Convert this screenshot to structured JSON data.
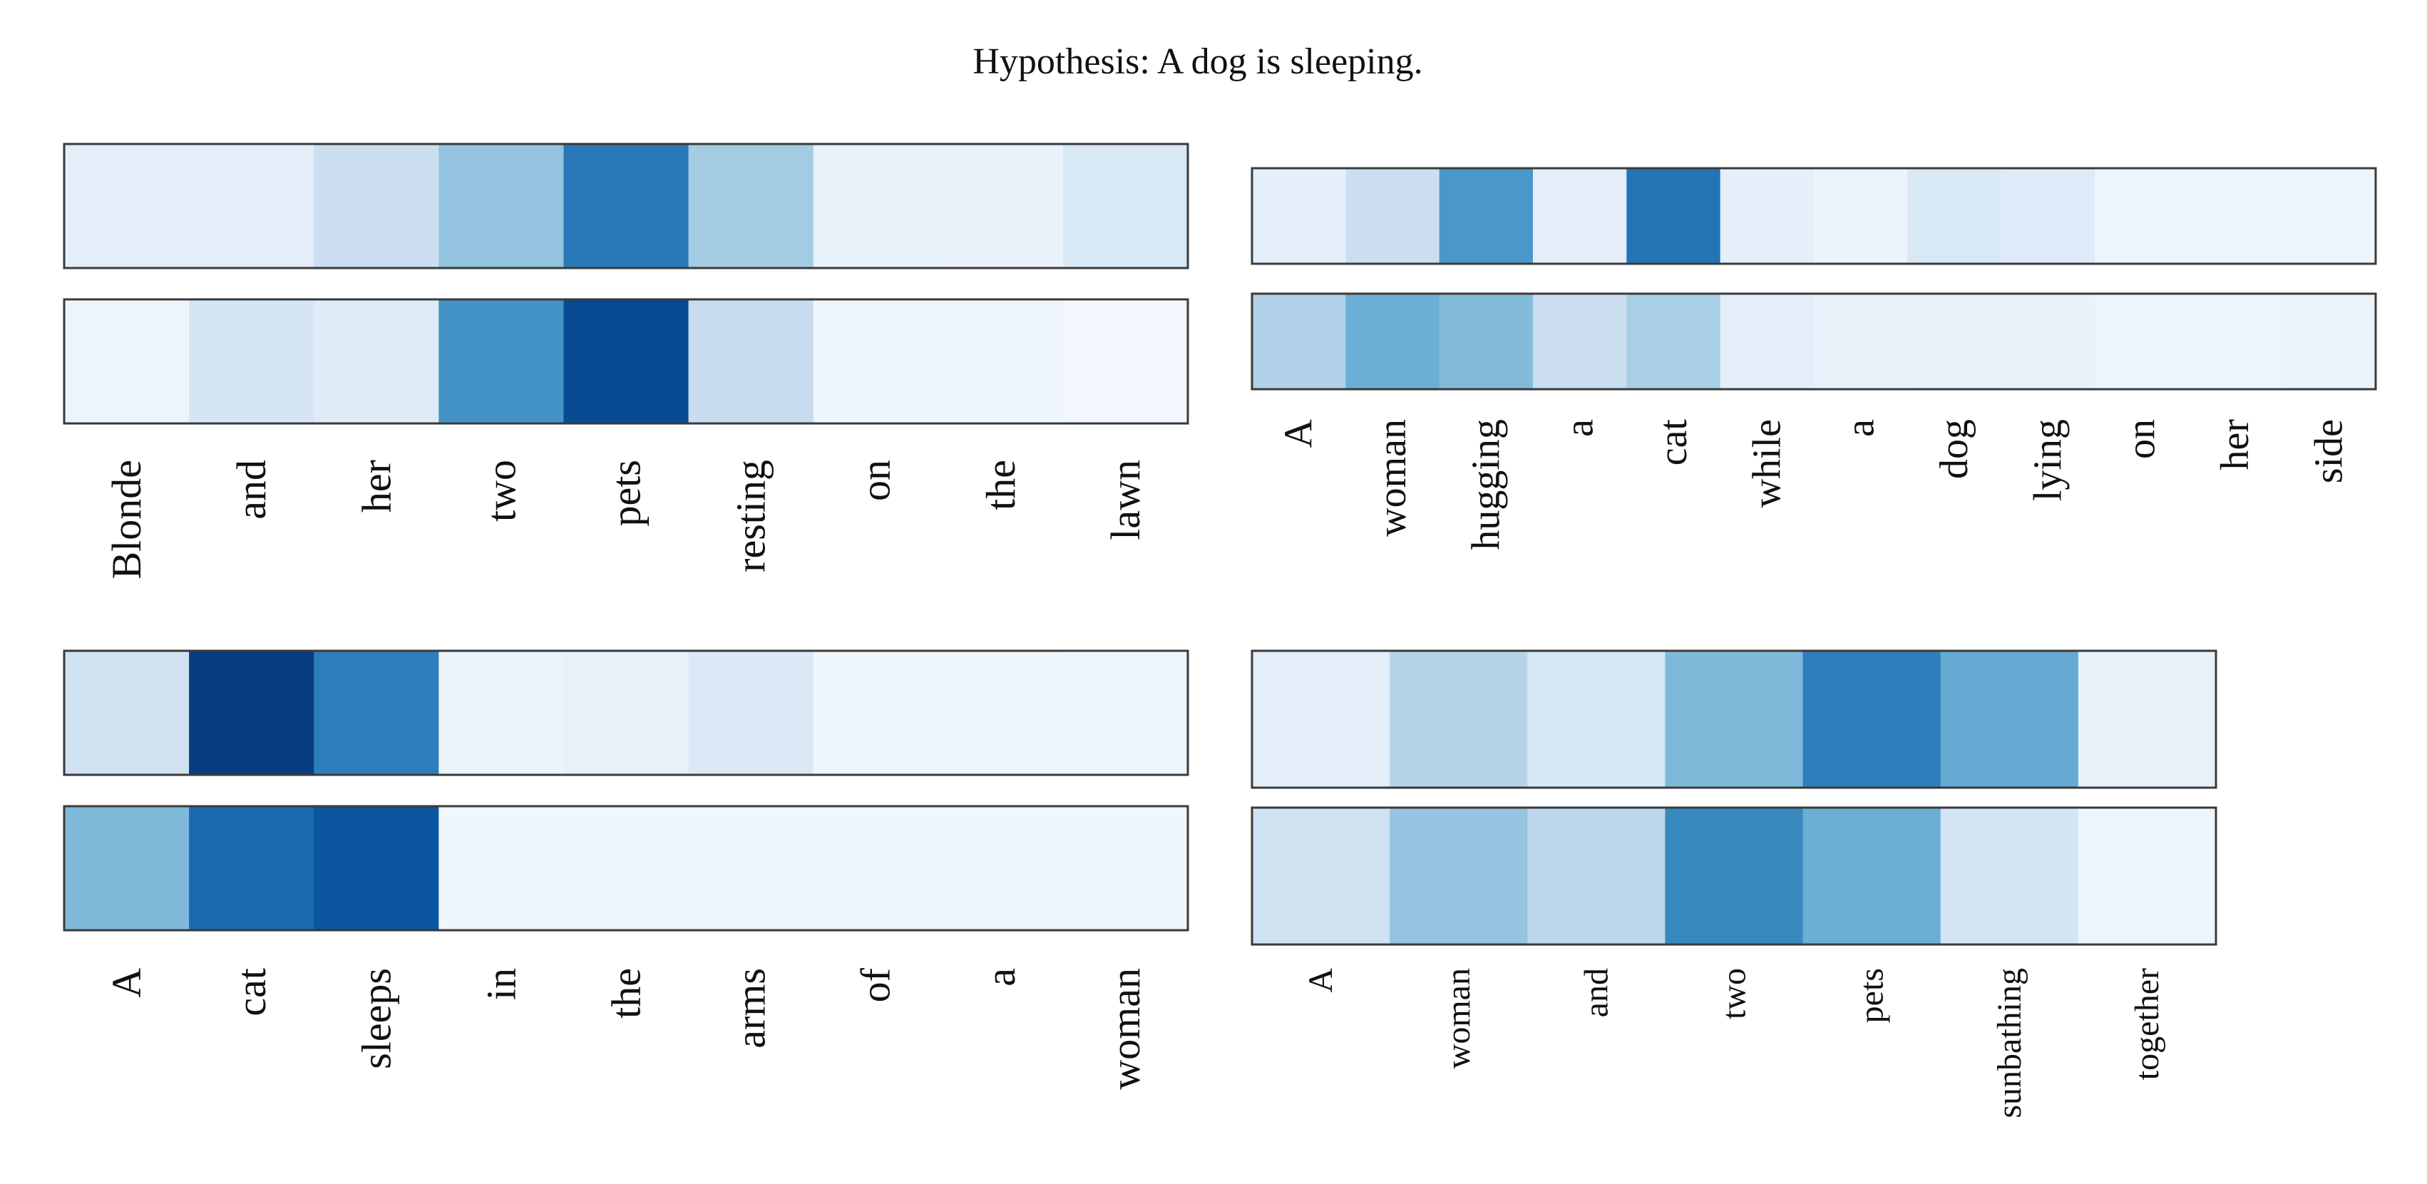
{
  "title": "Hypothesis: A dog is sleeping.",
  "colorscale": {
    "low": "#f7fbff",
    "high": "#08306b"
  },
  "chart_data": [
    {
      "type": "heatmap",
      "panel": "top-left",
      "categories": [
        "Blonde",
        "and",
        "her",
        "two",
        "pets",
        "resting",
        "on",
        "the",
        "lawn"
      ],
      "series": [
        {
          "values": [
            0.1,
            0.1,
            0.22,
            0.4,
            0.72,
            0.36,
            0.08,
            0.07,
            0.15
          ]
        },
        {
          "values": [
            0.05,
            0.17,
            0.12,
            0.62,
            0.9,
            0.24,
            0.04,
            0.04,
            0.03
          ]
        }
      ]
    },
    {
      "type": "heatmap",
      "panel": "top-right",
      "categories": [
        "A",
        "woman",
        "hugging",
        "a",
        "cat",
        "while",
        "a",
        "dog",
        "lying",
        "on",
        "her",
        "side"
      ],
      "series": [
        {
          "values": [
            0.09,
            0.22,
            0.6,
            0.1,
            0.74,
            0.09,
            0.06,
            0.15,
            0.13,
            0.05,
            0.05,
            0.05
          ]
        },
        {
          "values": [
            0.32,
            0.5,
            0.44,
            0.23,
            0.34,
            0.1,
            0.07,
            0.08,
            0.07,
            0.05,
            0.05,
            0.06
          ]
        }
      ]
    },
    {
      "type": "heatmap",
      "panel": "bottom-left",
      "categories": [
        "A",
        "cat",
        "sleeps",
        "in",
        "the",
        "arms",
        "of",
        "a",
        "woman"
      ],
      "series": [
        {
          "values": [
            0.2,
            0.95,
            0.7,
            0.06,
            0.08,
            0.14,
            0.04,
            0.04,
            0.05
          ]
        },
        {
          "values": [
            0.45,
            0.78,
            0.86,
            0.04,
            0.04,
            0.04,
            0.04,
            0.04,
            0.04
          ]
        }
      ]
    },
    {
      "type": "heatmap",
      "panel": "bottom-right",
      "categories": [
        "A",
        "woman",
        "and",
        "two",
        "pets",
        "sunbathing",
        "together"
      ],
      "series": [
        {
          "values": [
            0.1,
            0.3,
            0.16,
            0.45,
            0.7,
            0.52,
            0.08
          ]
        },
        {
          "values": [
            0.2,
            0.4,
            0.28,
            0.66,
            0.5,
            0.18,
            0.05
          ]
        }
      ]
    }
  ]
}
